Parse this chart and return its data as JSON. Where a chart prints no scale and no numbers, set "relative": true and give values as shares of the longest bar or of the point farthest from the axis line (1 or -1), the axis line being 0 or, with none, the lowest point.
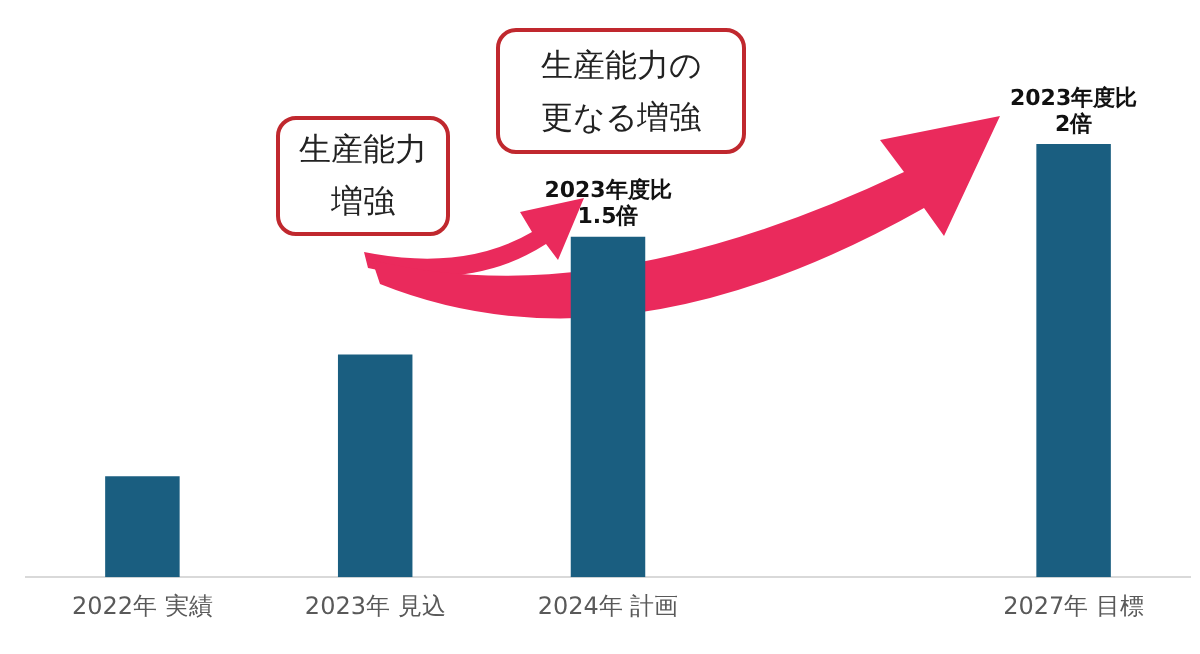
{
  "chart_data": {
    "type": "bar",
    "relative": true,
    "categories": [
      "2022年 実績",
      "2023年 見込",
      "2024年 計画",
      null,
      "2027年 目標"
    ],
    "values": [
      0.233,
      0.514,
      0.786,
      null,
      1
    ],
    "color": "#1a5e80",
    "grid": false,
    "legend": false,
    "annotations": [
      {
        "text": "2023年度比\n1.5倍",
        "x": "2024年 計画",
        "y": 0.786
      },
      {
        "text": "2023年度比\n2倍",
        "x": "2027年 目標",
        "y": 1
      },
      "生産能力増強",
      "生産能力の更なる増強"
    ]
  }
}
